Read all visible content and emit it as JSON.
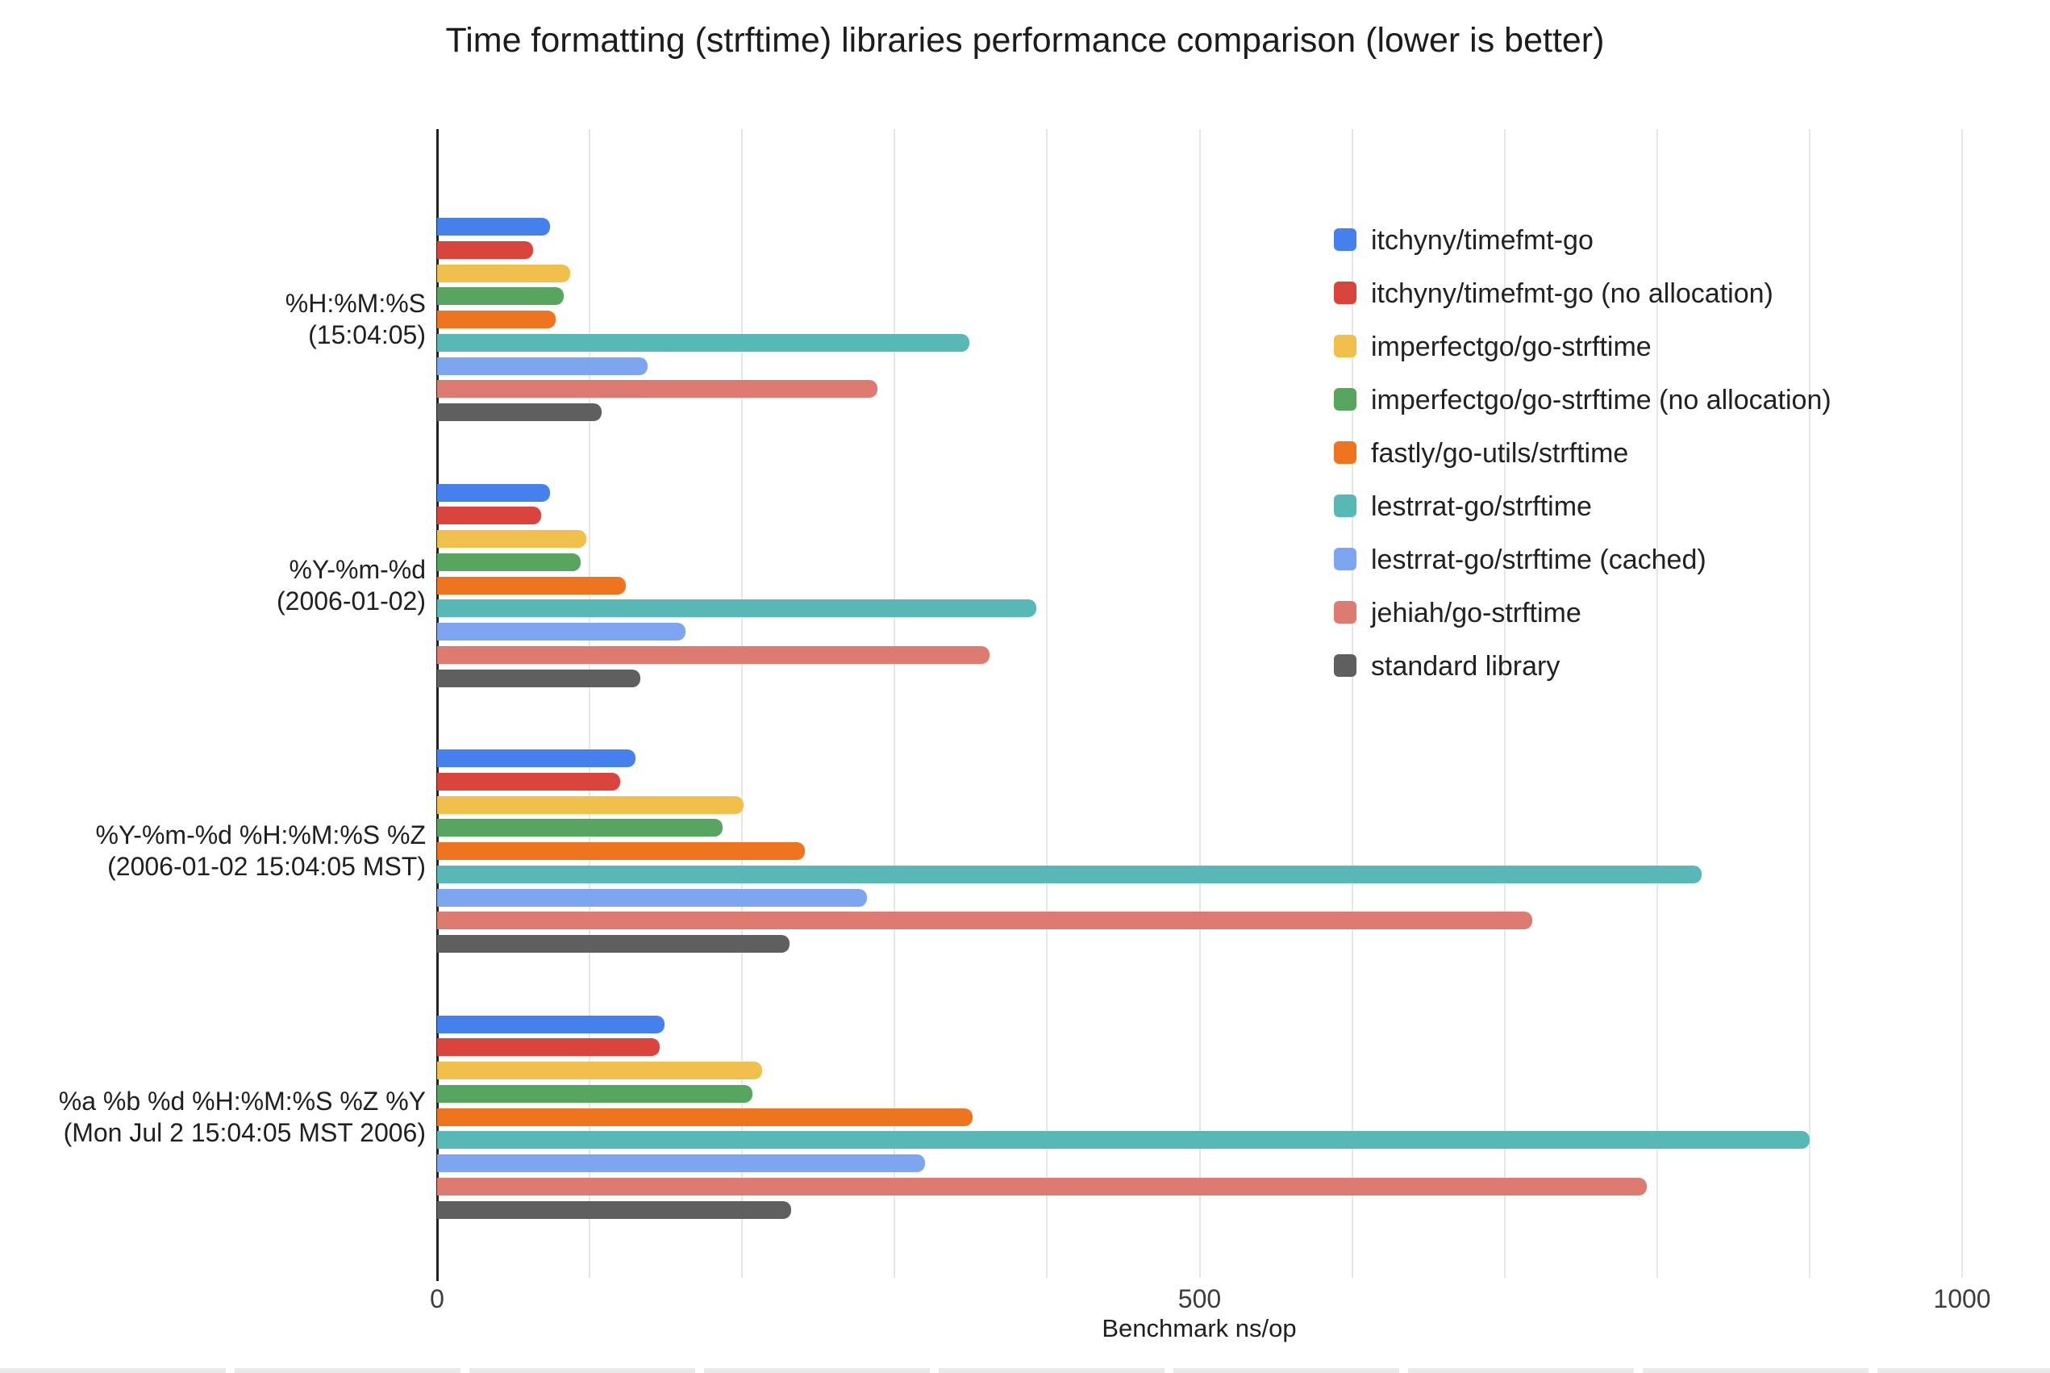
{
  "chart_data": {
    "type": "bar",
    "orientation": "horizontal",
    "title": "Time formatting (strftime) libraries performance comparison (lower is better)",
    "xlabel": "Benchmark ns/op",
    "x_ticks": [
      0,
      500,
      1000
    ],
    "x_range": [
      0,
      1055
    ],
    "gridline_step": 100,
    "grid": true,
    "legend_position": "right",
    "lower_is_better": true,
    "categories": [
      {
        "format": "%H:%M:%S",
        "example": "(15:04:05)"
      },
      {
        "format": "%Y-%m-%d",
        "example": "(2006-01-02)"
      },
      {
        "format": "%Y-%m-%d %H:%M:%S %Z",
        "example": "(2006-01-02 15:04:05 MST)"
      },
      {
        "format": "%a %b %d %H:%M:%S %Z %Y",
        "example": "(Mon Jul 2 15:04:05 MST 2006)"
      }
    ],
    "series": [
      {
        "name": "itchyny/timefmt-go",
        "color": "#4680EC",
        "values": [
          74,
          74,
          130,
          149
        ]
      },
      {
        "name": "itchyny/timefmt-go (no allocation)",
        "color": "#D9453C",
        "values": [
          63,
          68,
          120,
          146
        ]
      },
      {
        "name": "imperfectgo/go-strftime",
        "color": "#F1BF4B",
        "values": [
          87,
          98,
          201,
          213
        ]
      },
      {
        "name": "imperfectgo/go-strftime (no allocation)",
        "color": "#57A55E",
        "values": [
          83,
          94,
          187,
          207
        ]
      },
      {
        "name": "fastly/go-utils/strftime",
        "color": "#EE7420",
        "values": [
          78,
          124,
          241,
          351
        ]
      },
      {
        "name": "lestrrat-go/strftime",
        "color": "#58B8B5",
        "values": [
          349,
          393,
          829,
          900
        ]
      },
      {
        "name": "lestrrat-go/strftime (cached)",
        "color": "#7EA6F0",
        "values": [
          138,
          163,
          282,
          320
        ]
      },
      {
        "name": "jehiah/go-strftime",
        "color": "#DE7B71",
        "values": [
          289,
          362,
          718,
          793
        ]
      },
      {
        "name": "standard library",
        "color": "#5F5F5F",
        "values": [
          108,
          133,
          231,
          232
        ]
      }
    ]
  },
  "colors": {
    "background": "#ffffff",
    "axis_line": "#212121",
    "gridline": "#e7e7e7",
    "text": "#1f1f1f"
  }
}
